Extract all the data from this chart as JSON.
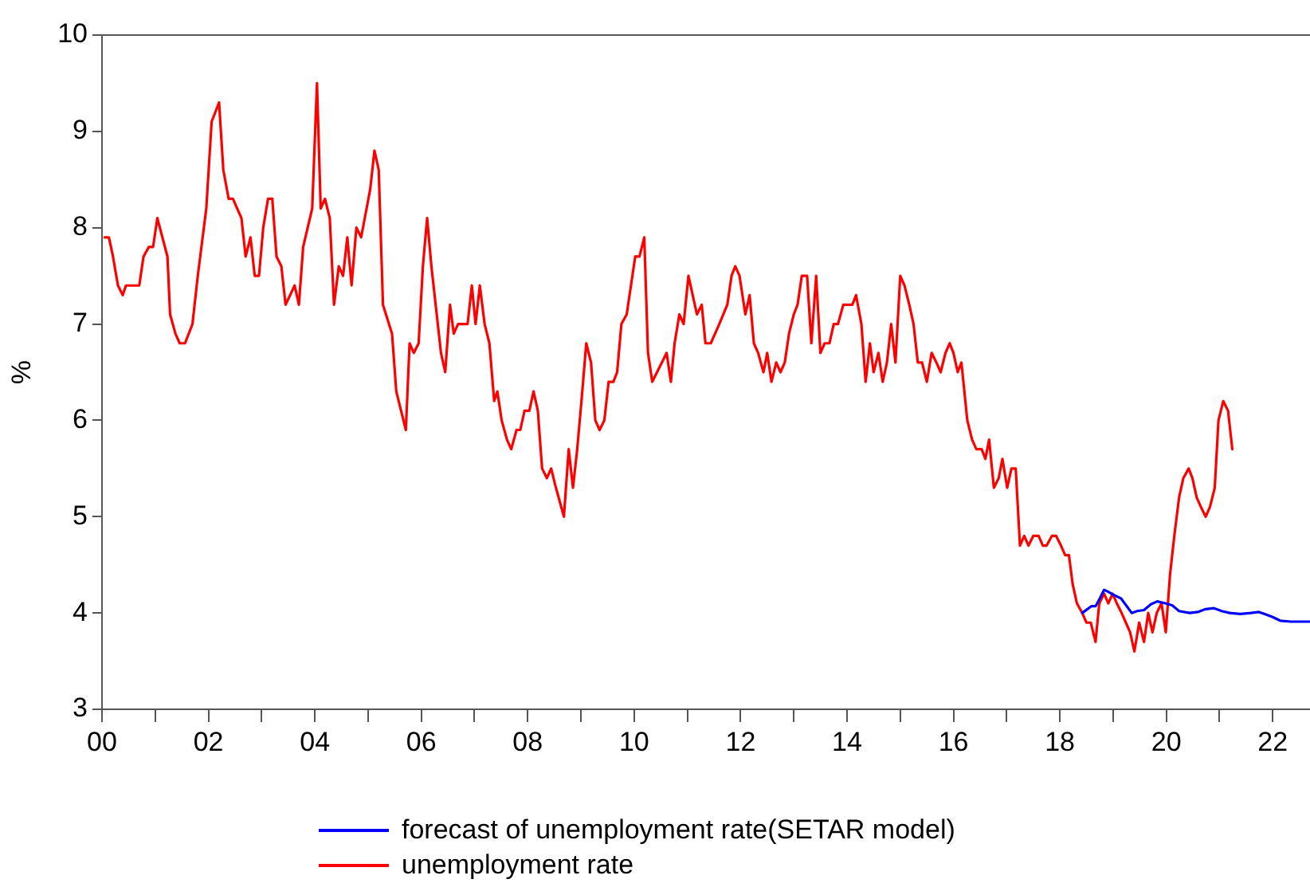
{
  "chart_data": {
    "type": "line",
    "ylabel": "%",
    "xlim": [
      2000,
      2022.7
    ],
    "ylim": [
      3,
      10
    ],
    "yticks": [
      3,
      4,
      5,
      6,
      7,
      8,
      9,
      10
    ],
    "xticks": [
      {
        "value": 2000,
        "label": "00"
      },
      {
        "value": 2001,
        "label": null
      },
      {
        "value": 2002,
        "label": "02"
      },
      {
        "value": 2003,
        "label": null
      },
      {
        "value": 2004,
        "label": "04"
      },
      {
        "value": 2005,
        "label": null
      },
      {
        "value": 2006,
        "label": "06"
      },
      {
        "value": 2007,
        "label": null
      },
      {
        "value": 2008,
        "label": "08"
      },
      {
        "value": 2009,
        "label": null
      },
      {
        "value": 2010,
        "label": "10"
      },
      {
        "value": 2011,
        "label": null
      },
      {
        "value": 2012,
        "label": "12"
      },
      {
        "value": 2013,
        "label": null
      },
      {
        "value": 2014,
        "label": "14"
      },
      {
        "value": 2015,
        "label": null
      },
      {
        "value": 2016,
        "label": "16"
      },
      {
        "value": 2017,
        "label": null
      },
      {
        "value": 2018,
        "label": "18"
      },
      {
        "value": 2019,
        "label": null
      },
      {
        "value": 2020,
        "label": "20"
      },
      {
        "value": 2021,
        "label": null
      },
      {
        "value": 2022,
        "label": "22"
      }
    ],
    "grid": false,
    "legend": "bottom",
    "marker": "none",
    "line_style": "solid",
    "series": [
      {
        "name": "forecast of unemployment rate(SETAR model)",
        "color": "#0000ff",
        "x": [
          2018.42,
          2018.59,
          2018.67,
          2018.76,
          2018.83,
          2018.91,
          2019.0,
          2019.15,
          2019.23,
          2019.35,
          2019.45,
          2019.58,
          2019.71,
          2019.83,
          2019.98,
          2020.11,
          2020.24,
          2020.44,
          2020.59,
          2020.74,
          2020.89,
          2021.04,
          2021.19,
          2021.39,
          2021.59,
          2021.74,
          2021.84,
          2021.99,
          2022.14,
          2022.34,
          2022.69
        ],
        "values": [
          4.0,
          4.07,
          4.07,
          4.16,
          4.24,
          4.22,
          4.19,
          4.15,
          4.09,
          4.0,
          4.02,
          4.03,
          4.09,
          4.12,
          4.1,
          4.08,
          4.02,
          4.0,
          4.01,
          4.04,
          4.05,
          4.02,
          4.0,
          3.99,
          4.0,
          4.01,
          3.99,
          3.96,
          3.92,
          3.91,
          3.91
        ]
      },
      {
        "name": "unemployment rate",
        "color": "#ff0000",
        "x": [
          2000.05,
          2000.13,
          2000.2,
          2000.3,
          2000.39,
          2000.45,
          2000.7,
          2000.78,
          2000.88,
          2000.96,
          2001.04,
          2001.23,
          2001.28,
          2001.38,
          2001.46,
          2001.56,
          2001.7,
          2001.8,
          2001.96,
          2002.06,
          2002.2,
          2002.28,
          2002.38,
          2002.46,
          2002.62,
          2002.7,
          2002.79,
          2002.87,
          2002.95,
          2003.03,
          2003.12,
          2003.2,
          2003.28,
          2003.37,
          2003.45,
          2003.62,
          2003.7,
          2003.78,
          2003.95,
          2004.04,
          2004.11,
          2004.19,
          2004.28,
          2004.36,
          2004.45,
          2004.53,
          2004.61,
          2004.69,
          2004.78,
          2004.87,
          2005.04,
          2005.12,
          2005.2,
          2005.28,
          2005.45,
          2005.53,
          2005.71,
          2005.78,
          2005.86,
          2005.95,
          2006.03,
          2006.11,
          2006.19,
          2006.37,
          2006.45,
          2006.54,
          2006.61,
          2006.69,
          2006.87,
          2006.95,
          2007.02,
          2007.1,
          2007.19,
          2007.28,
          2007.37,
          2007.43,
          2007.51,
          2007.61,
          2007.69,
          2007.79,
          2007.86,
          2007.94,
          2008.03,
          2008.11,
          2008.19,
          2008.27,
          2008.36,
          2008.44,
          2008.53,
          2008.68,
          2008.77,
          2008.85,
          2008.93,
          2009.01,
          2009.1,
          2009.19,
          2009.27,
          2009.35,
          2009.44,
          2009.52,
          2009.61,
          2009.68,
          2009.76,
          2009.86,
          2009.94,
          2010.02,
          2010.1,
          2010.19,
          2010.26,
          2010.34,
          2010.52,
          2010.61,
          2010.69,
          2010.76,
          2010.85,
          2010.93,
          2011.02,
          2011.1,
          2011.18,
          2011.27,
          2011.34,
          2011.44,
          2011.6,
          2011.75,
          2011.83,
          2011.9,
          2011.98,
          2012.09,
          2012.17,
          2012.25,
          2012.33,
          2012.43,
          2012.5,
          2012.58,
          2012.67,
          2012.75,
          2012.83,
          2012.91,
          2013.0,
          2013.07,
          2013.15,
          2013.25,
          2013.33,
          2013.42,
          2013.5,
          2013.58,
          2013.67,
          2013.75,
          2013.83,
          2013.93,
          2014.1,
          2014.17,
          2014.27,
          2014.35,
          2014.43,
          2014.5,
          2014.59,
          2014.67,
          2014.75,
          2014.83,
          2014.91,
          2015.0,
          2015.08,
          2015.17,
          2015.25,
          2015.33,
          2015.41,
          2015.5,
          2015.59,
          2015.68,
          2015.76,
          2015.85,
          2015.93,
          2016.0,
          2016.08,
          2016.15,
          2016.26,
          2016.35,
          2016.43,
          2016.53,
          2016.6,
          2016.67,
          2016.76,
          2016.85,
          2016.92,
          2017.01,
          2017.09,
          2017.17,
          2017.25,
          2017.33,
          2017.41,
          2017.5,
          2017.6,
          2017.68,
          2017.75,
          2017.85,
          2017.93,
          2018.02,
          2018.1,
          2018.17,
          2018.24,
          2018.32,
          2018.42,
          2018.5,
          2018.58,
          2018.67,
          2018.74,
          2018.83,
          2018.91,
          2018.99,
          2019.07,
          2019.16,
          2019.24,
          2019.32,
          2019.4,
          2019.49,
          2019.58,
          2019.66,
          2019.74,
          2019.82,
          2019.91,
          2019.99,
          2020.07,
          2020.15,
          2020.24,
          2020.32,
          2020.42,
          2020.49,
          2020.57,
          2020.65,
          2020.74,
          2020.82,
          2020.91,
          2020.98,
          2021.07,
          2021.16,
          2021.24
        ],
        "values": [
          7.9,
          7.9,
          7.72,
          7.4,
          7.3,
          7.4,
          7.4,
          7.7,
          7.8,
          7.8,
          8.1,
          7.7,
          7.1,
          6.9,
          6.8,
          6.8,
          7.0,
          7.5,
          8.2,
          9.1,
          9.3,
          8.6,
          8.3,
          8.3,
          8.1,
          7.7,
          7.9,
          7.5,
          7.5,
          8.0,
          8.3,
          8.3,
          7.7,
          7.6,
          7.2,
          7.4,
          7.2,
          7.8,
          8.2,
          9.5,
          8.2,
          8.3,
          8.1,
          7.2,
          7.6,
          7.5,
          7.9,
          7.4,
          8.0,
          7.9,
          8.4,
          8.8,
          8.6,
          7.2,
          6.9,
          6.3,
          5.9,
          6.8,
          6.7,
          6.8,
          7.6,
          8.1,
          7.6,
          6.7,
          6.5,
          7.2,
          6.9,
          7.0,
          7.0,
          7.4,
          7.0,
          7.4,
          7.0,
          6.8,
          6.2,
          6.3,
          6.0,
          5.8,
          5.7,
          5.9,
          5.9,
          6.1,
          6.1,
          6.3,
          6.1,
          5.5,
          5.4,
          5.5,
          5.3,
          5.0,
          5.7,
          5.3,
          5.7,
          6.2,
          6.8,
          6.6,
          6.0,
          5.9,
          6.0,
          6.4,
          6.4,
          6.5,
          7.0,
          7.1,
          7.4,
          7.7,
          7.7,
          7.9,
          6.7,
          6.4,
          6.6,
          6.7,
          6.4,
          6.8,
          7.1,
          7.0,
          7.5,
          7.3,
          7.1,
          7.2,
          6.8,
          6.8,
          7.0,
          7.2,
          7.5,
          7.6,
          7.5,
          7.1,
          7.3,
          6.8,
          6.7,
          6.5,
          6.7,
          6.4,
          6.6,
          6.5,
          6.6,
          6.9,
          7.1,
          7.2,
          7.5,
          7.5,
          6.8,
          7.5,
          6.7,
          6.8,
          6.8,
          7.0,
          7.0,
          7.2,
          7.2,
          7.3,
          7.0,
          6.4,
          6.8,
          6.5,
          6.7,
          6.4,
          6.6,
          7.0,
          6.6,
          7.5,
          7.4,
          7.2,
          7.0,
          6.6,
          6.6,
          6.4,
          6.7,
          6.6,
          6.5,
          6.7,
          6.8,
          6.7,
          6.5,
          6.6,
          6.0,
          5.8,
          5.7,
          5.7,
          5.6,
          5.8,
          5.3,
          5.4,
          5.6,
          5.3,
          5.5,
          5.5,
          4.7,
          4.8,
          4.7,
          4.8,
          4.8,
          4.7,
          4.7,
          4.8,
          4.8,
          4.7,
          4.6,
          4.6,
          4.3,
          4.1,
          4.0,
          3.9,
          3.9,
          3.7,
          4.1,
          4.2,
          4.1,
          4.2,
          4.1,
          4.0,
          3.9,
          3.8,
          3.6,
          3.9,
          3.7,
          4.0,
          3.8,
          4.0,
          4.1,
          3.8,
          4.4,
          4.8,
          5.2,
          5.4,
          5.5,
          5.4,
          5.2,
          5.1,
          5.0,
          5.1,
          5.3,
          6.0,
          6.2,
          6.1,
          5.7
        ]
      }
    ]
  }
}
